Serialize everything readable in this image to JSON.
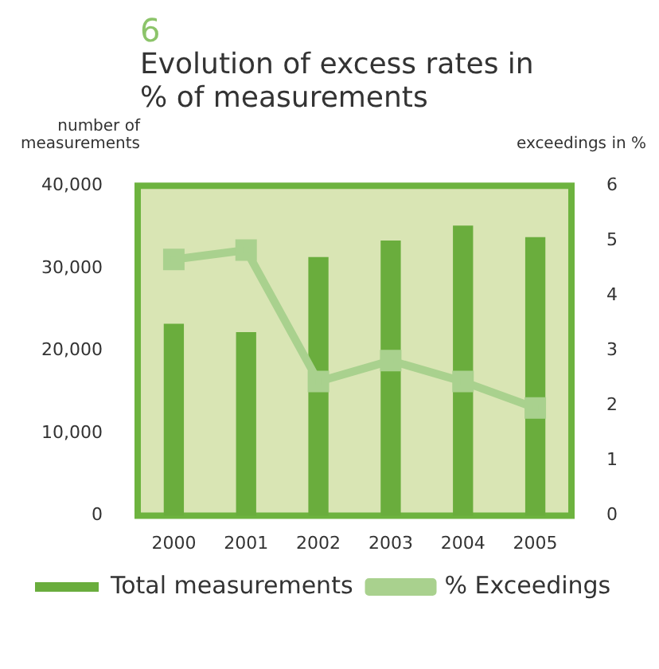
{
  "chart_data": {
    "type": "bar",
    "title": "6",
    "subtitle": "Evolution of excess rates in % of measurements",
    "ylabel": "number of measurements",
    "y2label": "exceedings in %",
    "categories": [
      "2000",
      "2001",
      "2002",
      "2003",
      "2004",
      "2005"
    ],
    "series": [
      {
        "name": "Total measurements",
        "color": "#6aad3d",
        "values": [
          23200,
          22200,
          31300,
          33300,
          35100,
          33700
        ]
      },
      {
        "name": "% Exceedings",
        "type": "line",
        "axis": "y2",
        "color": "#a9d18e",
        "values": [
          4.66,
          4.83,
          2.44,
          2.82,
          2.44,
          1.96
        ]
      }
    ],
    "ylim": [
      0,
      40000
    ],
    "yticks": [
      {
        "value": 0,
        "label": "0"
      },
      {
        "value": 10000,
        "label": "10,000"
      },
      {
        "value": 20000,
        "label": "20,000"
      },
      {
        "value": 30000,
        "label": "30,000"
      },
      {
        "value": 40000,
        "label": "40,000"
      }
    ],
    "y2lim": [
      0,
      6
    ],
    "y2ticks": [
      0,
      1,
      2,
      3,
      4,
      5,
      6
    ],
    "grid": false,
    "legend": "bottom",
    "marker": "square",
    "line_style": "solid"
  }
}
